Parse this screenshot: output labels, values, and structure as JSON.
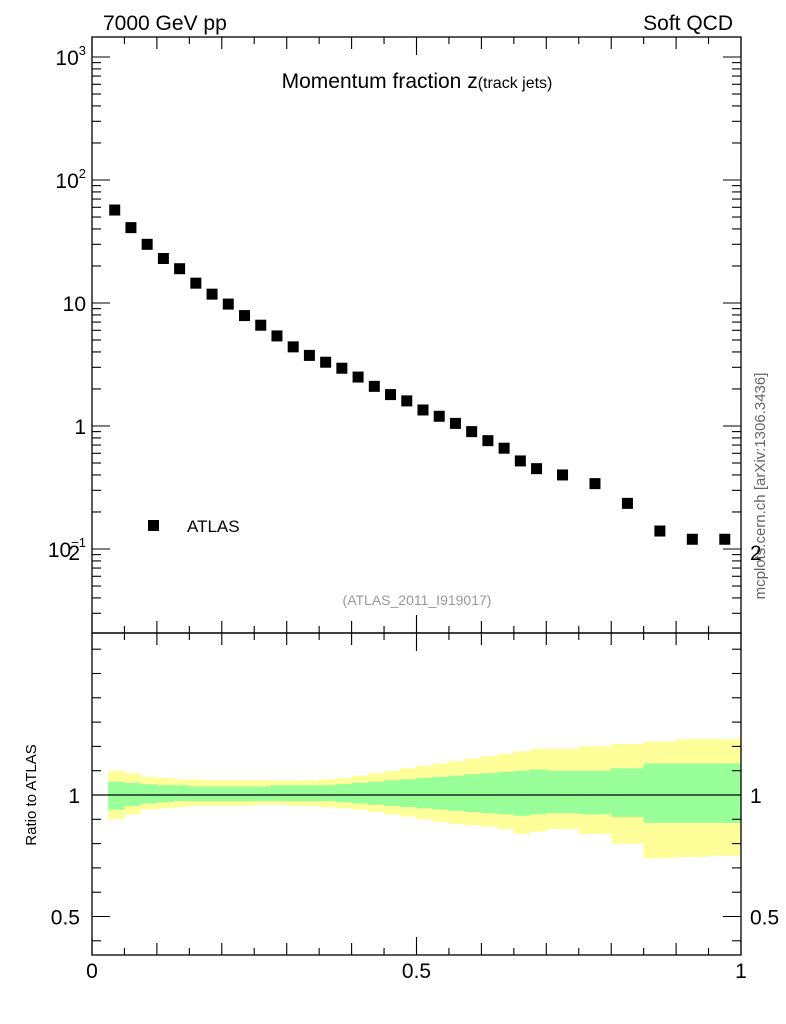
{
  "header": {
    "left": "7000 GeV pp",
    "right": "Soft QCD"
  },
  "side_label": "mcplots.cern.ch [arXiv:1306.3436]",
  "chart_data": [
    {
      "type": "scatter",
      "title_main": "Momentum fraction z",
      "title_sub": "(track jets)",
      "analysis": "(ATLAS_2011_I919017)",
      "yscale": "log",
      "xlim": [
        0,
        1
      ],
      "ylim": [
        0.025,
        1300
      ],
      "y_tick_labels": [
        "10^-1",
        "1",
        "10",
        "10^2",
        "10^3"
      ],
      "legend": {
        "label": "ATLAS",
        "position": "lower-left"
      },
      "series": [
        {
          "name": "ATLAS",
          "x": [
            0.035,
            0.06,
            0.085,
            0.11,
            0.135,
            0.16,
            0.185,
            0.21,
            0.235,
            0.26,
            0.285,
            0.31,
            0.335,
            0.36,
            0.385,
            0.41,
            0.435,
            0.46,
            0.485,
            0.51,
            0.535,
            0.56,
            0.585,
            0.61,
            0.635,
            0.66,
            0.685,
            0.725,
            0.775,
            0.825,
            0.875,
            0.925,
            0.975
          ],
          "y": [
            57,
            41,
            30,
            23,
            19,
            14.5,
            11.8,
            9.8,
            7.9,
            6.6,
            5.4,
            4.4,
            3.75,
            3.3,
            2.95,
            2.5,
            2.1,
            1.8,
            1.6,
            1.35,
            1.2,
            1.05,
            0.9,
            0.76,
            0.66,
            0.52,
            0.45,
            0.4,
            0.34,
            0.235,
            0.14,
            0.12,
            0.12
          ]
        }
      ]
    },
    {
      "type": "area",
      "ylabel": "Ratio to ATLAS",
      "xlim": [
        0,
        1
      ],
      "ylim": [
        0.35,
        2.25
      ],
      "y_ticks": [
        0.5,
        1,
        2
      ],
      "x_ticks": [
        0,
        0.5,
        1
      ],
      "reference_line": 1,
      "bands": [
        {
          "name": "total",
          "color": "#ffff99",
          "edges": [
            0.025,
            0.05,
            0.075,
            0.1,
            0.125,
            0.15,
            0.175,
            0.2,
            0.225,
            0.25,
            0.275,
            0.3,
            0.325,
            0.35,
            0.375,
            0.4,
            0.425,
            0.45,
            0.475,
            0.5,
            0.525,
            0.55,
            0.575,
            0.6,
            0.625,
            0.65,
            0.675,
            0.7,
            0.75,
            0.8,
            0.85,
            0.9,
            0.95,
            1.0
          ],
          "low": [
            0.9,
            0.92,
            0.94,
            0.945,
            0.95,
            0.955,
            0.955,
            0.955,
            0.955,
            0.96,
            0.96,
            0.955,
            0.955,
            0.95,
            0.945,
            0.94,
            0.93,
            0.92,
            0.91,
            0.9,
            0.89,
            0.88,
            0.875,
            0.87,
            0.86,
            0.84,
            0.85,
            0.86,
            0.84,
            0.8,
            0.74,
            0.745,
            0.75
          ],
          "high": [
            1.1,
            1.09,
            1.075,
            1.07,
            1.065,
            1.065,
            1.06,
            1.06,
            1.06,
            1.06,
            1.06,
            1.06,
            1.06,
            1.065,
            1.07,
            1.08,
            1.09,
            1.1,
            1.11,
            1.12,
            1.13,
            1.14,
            1.15,
            1.16,
            1.17,
            1.18,
            1.19,
            1.19,
            1.2,
            1.21,
            1.22,
            1.23,
            1.23
          ]
        },
        {
          "name": "stat",
          "color": "#99ff99",
          "edges": [
            0.025,
            0.05,
            0.075,
            0.1,
            0.125,
            0.15,
            0.175,
            0.2,
            0.225,
            0.25,
            0.275,
            0.3,
            0.325,
            0.35,
            0.375,
            0.4,
            0.425,
            0.45,
            0.475,
            0.5,
            0.525,
            0.55,
            0.575,
            0.6,
            0.625,
            0.65,
            0.675,
            0.7,
            0.75,
            0.8,
            0.85,
            0.9,
            0.95,
            1.0
          ],
          "low": [
            0.94,
            0.955,
            0.965,
            0.97,
            0.975,
            0.975,
            0.975,
            0.975,
            0.975,
            0.975,
            0.975,
            0.975,
            0.975,
            0.975,
            0.97,
            0.965,
            0.96,
            0.955,
            0.95,
            0.945,
            0.94,
            0.935,
            0.93,
            0.925,
            0.92,
            0.915,
            0.92,
            0.925,
            0.92,
            0.91,
            0.885,
            0.885,
            0.885
          ],
          "high": [
            1.055,
            1.05,
            1.045,
            1.04,
            1.04,
            1.035,
            1.035,
            1.035,
            1.035,
            1.035,
            1.04,
            1.04,
            1.04,
            1.04,
            1.045,
            1.05,
            1.055,
            1.06,
            1.065,
            1.07,
            1.075,
            1.08,
            1.085,
            1.09,
            1.095,
            1.1,
            1.105,
            1.1,
            1.1,
            1.11,
            1.13,
            1.13,
            1.13
          ]
        }
      ]
    }
  ]
}
